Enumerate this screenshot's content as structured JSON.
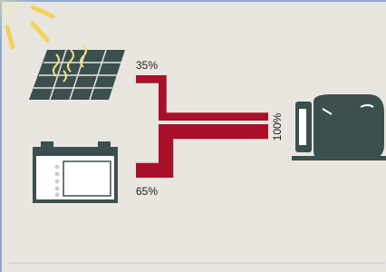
{
  "flows": [
    {
      "value": 35,
      "label": "35%"
    },
    {
      "value": 65,
      "label": "65%"
    }
  ],
  "total": {
    "value": 100,
    "label": "100%"
  }
}
